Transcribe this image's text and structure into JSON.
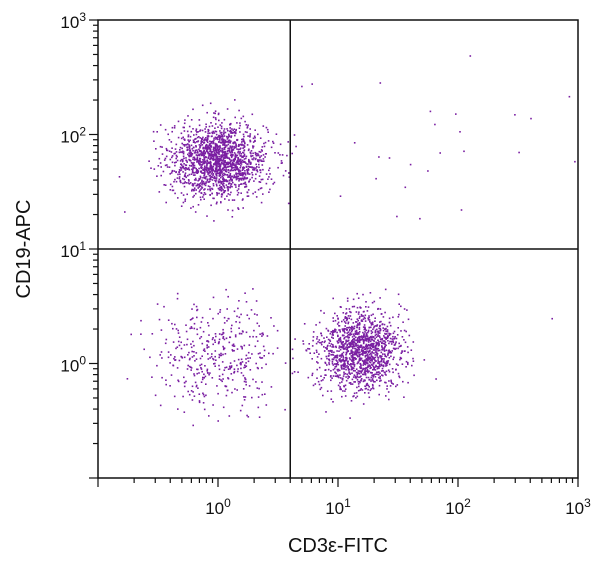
{
  "chart_data": {
    "type": "scatter",
    "title": "",
    "xlabel": "CD3ε-FITC",
    "ylabel": "CD19-APC",
    "xscale": "log",
    "yscale": "log",
    "xlim": [
      0.1,
      1000
    ],
    "ylim": [
      0.1,
      1000
    ],
    "x_ticks": [
      {
        "base": "10",
        "exp": "0",
        "value": 1
      },
      {
        "base": "10",
        "exp": "1",
        "value": 10
      },
      {
        "base": "10",
        "exp": "2",
        "value": 100
      },
      {
        "base": "10",
        "exp": "3",
        "value": 1000
      }
    ],
    "y_ticks": [
      {
        "base": "10",
        "exp": "0",
        "value": 1
      },
      {
        "base": "10",
        "exp": "1",
        "value": 10
      },
      {
        "base": "10",
        "exp": "2",
        "value": 100
      },
      {
        "base": "10",
        "exp": "3",
        "value": 1000
      }
    ],
    "quadrant_gates": {
      "x": 4,
      "y": 10
    },
    "point_color": "#7a1fa2",
    "populations": [
      {
        "quadrant": "upper-left",
        "center": [
          1.0,
          60
        ],
        "spread_log": [
          0.2,
          0.16
        ],
        "count": 1700
      },
      {
        "quadrant": "lower-right",
        "center": [
          15,
          1.3
        ],
        "spread_log": [
          0.17,
          0.18
        ],
        "count": 1400
      },
      {
        "quadrant": "lower-left",
        "center": [
          1.0,
          1.2
        ],
        "spread_log": [
          0.26,
          0.22
        ],
        "count": 420
      },
      {
        "quadrant": "upper-right",
        "center": [
          40,
          80
        ],
        "spread_log": [
          0.6,
          0.35
        ],
        "count": 25
      }
    ],
    "outliers": [
      [
        400,
        140
      ],
      [
        600,
        2.5
      ],
      [
        70,
        70
      ],
      [
        6,
        280
      ]
    ]
  }
}
